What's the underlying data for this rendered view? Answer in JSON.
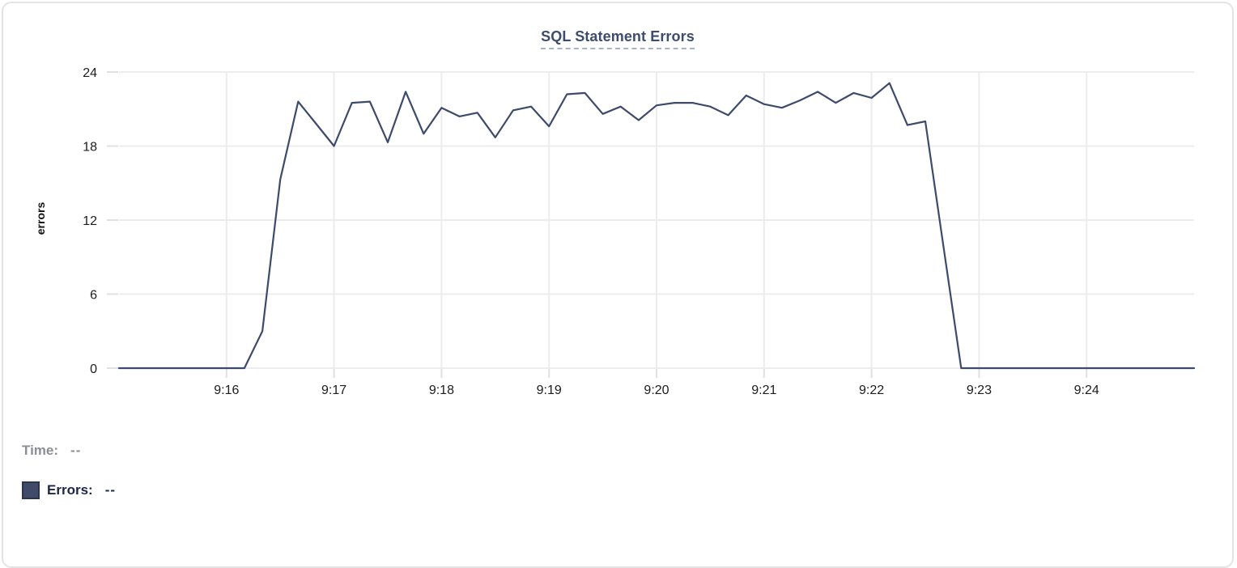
{
  "chart_data": {
    "type": "line",
    "title": "SQL Statement Errors",
    "xlabel": "",
    "ylabel": "errors",
    "grid": true,
    "legend_position": "bottom-left",
    "x_axis": {
      "start": "9:15:00",
      "end": "9:25:00",
      "tick_labels": [
        "9:16",
        "9:17",
        "9:18",
        "9:19",
        "9:20",
        "9:21",
        "9:22",
        "9:23",
        "9:24"
      ]
    },
    "y_axis": {
      "min": 0,
      "max": 24,
      "ticks": [
        0,
        6,
        12,
        18,
        24
      ]
    },
    "series": [
      {
        "name": "Errors",
        "color": "#3d4a6b",
        "sample_interval_seconds": 10,
        "points": [
          [
            "9:15:00",
            0
          ],
          [
            "9:15:10",
            0
          ],
          [
            "9:15:20",
            0
          ],
          [
            "9:15:30",
            0
          ],
          [
            "9:15:40",
            0
          ],
          [
            "9:15:50",
            0
          ],
          [
            "9:16:00",
            0
          ],
          [
            "9:16:10",
            0
          ],
          [
            "9:16:20",
            3
          ],
          [
            "9:16:30",
            15.3
          ],
          [
            "9:16:40",
            21.6
          ],
          [
            "9:16:50",
            19.8
          ],
          [
            "9:17:00",
            18
          ],
          [
            "9:17:10",
            21.5
          ],
          [
            "9:17:20",
            21.6
          ],
          [
            "9:17:30",
            18.3
          ],
          [
            "9:17:40",
            22.4
          ],
          [
            "9:17:50",
            19
          ],
          [
            "9:18:00",
            21.1
          ],
          [
            "9:18:10",
            20.4
          ],
          [
            "9:18:20",
            20.7
          ],
          [
            "9:18:30",
            18.7
          ],
          [
            "9:18:40",
            20.9
          ],
          [
            "9:18:50",
            21.2
          ],
          [
            "9:19:00",
            19.6
          ],
          [
            "9:19:10",
            22.2
          ],
          [
            "9:19:20",
            22.3
          ],
          [
            "9:19:30",
            20.6
          ],
          [
            "9:19:40",
            21.2
          ],
          [
            "9:19:50",
            20.1
          ],
          [
            "9:20:00",
            21.3
          ],
          [
            "9:20:10",
            21.5
          ],
          [
            "9:20:20",
            21.5
          ],
          [
            "9:20:30",
            21.2
          ],
          [
            "9:20:40",
            20.5
          ],
          [
            "9:20:50",
            22.1
          ],
          [
            "9:21:00",
            21.4
          ],
          [
            "9:21:10",
            21.1
          ],
          [
            "9:21:20",
            21.7
          ],
          [
            "9:21:30",
            22.4
          ],
          [
            "9:21:40",
            21.5
          ],
          [
            "9:21:50",
            22.3
          ],
          [
            "9:22:00",
            21.9
          ],
          [
            "9:22:10",
            23.1
          ],
          [
            "9:22:20",
            19.7
          ],
          [
            "9:22:30",
            20
          ],
          [
            "9:22:40",
            10
          ],
          [
            "9:22:50",
            0
          ],
          [
            "9:23:00",
            0
          ],
          [
            "9:23:10",
            0
          ],
          [
            "9:23:20",
            0
          ],
          [
            "9:23:30",
            0
          ],
          [
            "9:23:40",
            0
          ],
          [
            "9:23:50",
            0
          ],
          [
            "9:24:00",
            0
          ],
          [
            "9:24:10",
            0
          ],
          [
            "9:24:20",
            0
          ],
          [
            "9:24:30",
            0
          ],
          [
            "9:24:40",
            0
          ],
          [
            "9:24:50",
            0
          ],
          [
            "9:25:00",
            0
          ]
        ]
      }
    ]
  },
  "tooltip": {
    "time_label": "Time:",
    "time_value": "--",
    "errors_label": "Errors:",
    "errors_value": "--"
  },
  "colors": {
    "line": "#3d4a6b",
    "title": "#3e4c70",
    "title_underline": "#a8b2c8",
    "gridline": "#ececec",
    "tick_mark": "#e0e0e0",
    "axis_text": "#1c1c1c",
    "muted_text": "#8b8e99",
    "dark_text": "#1b2649",
    "swatch_fill": "#3f4b68",
    "swatch_border": "#2a3552",
    "card_border": "#e4e4e6"
  }
}
